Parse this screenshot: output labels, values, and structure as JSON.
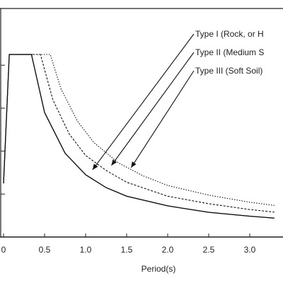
{
  "chart_data": {
    "type": "line",
    "title": "",
    "xlabel": "Period(s)",
    "ylabel": "",
    "xlim": [
      0,
      3.25
    ],
    "ylim": [
      0,
      1.0
    ],
    "x_ticks": [
      "0",
      "0.5",
      "1.0",
      "1.5",
      "2.0",
      "2.5",
      "3.0",
      "3"
    ],
    "grid": false,
    "series": [
      {
        "name": "Type I  (Rock, or H",
        "style": "solid",
        "x": [
          0.0,
          0.07,
          0.34,
          0.5,
          0.75,
          1.0,
          1.25,
          1.5,
          2.0,
          2.5,
          3.0,
          3.3
        ],
        "y": [
          0.25,
          0.85,
          0.85,
          0.58,
          0.39,
          0.29,
          0.23,
          0.19,
          0.145,
          0.115,
          0.097,
          0.088
        ]
      },
      {
        "name": "Type II (Medium S",
        "style": "dashed",
        "x": [
          0.0,
          0.07,
          0.45,
          0.6,
          0.8,
          1.0,
          1.25,
          1.5,
          2.0,
          2.5,
          3.0,
          3.3
        ],
        "y": [
          0.25,
          0.85,
          0.85,
          0.64,
          0.48,
          0.38,
          0.31,
          0.255,
          0.19,
          0.155,
          0.128,
          0.116
        ]
      },
      {
        "name": "Type III (Soft Soil)",
        "style": "dotted",
        "x": [
          0.0,
          0.07,
          0.57,
          0.7,
          0.9,
          1.1,
          1.4,
          1.7,
          2.0,
          2.5,
          3.0,
          3.3
        ],
        "y": [
          0.25,
          0.85,
          0.85,
          0.69,
          0.54,
          0.44,
          0.345,
          0.285,
          0.24,
          0.195,
          0.162,
          0.147
        ]
      }
    ]
  }
}
